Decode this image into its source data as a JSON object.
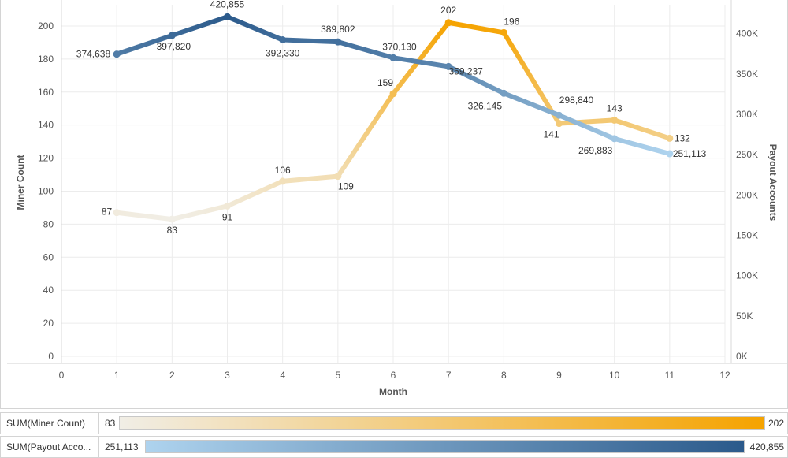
{
  "chart_data": {
    "type": "line",
    "xlabel": "Month",
    "ylabel_left": "Miner Count",
    "ylabel_right": "Payout Accounts",
    "xlim": [
      0,
      12
    ],
    "x_ticks": [
      "0",
      "1",
      "2",
      "3",
      "4",
      "5",
      "6",
      "7",
      "8",
      "9",
      "10",
      "11",
      "12"
    ],
    "ylim_left": [
      0,
      210
    ],
    "y_ticks_left": [
      "0",
      "20",
      "40",
      "60",
      "80",
      "100",
      "120",
      "140",
      "160",
      "180",
      "200"
    ],
    "ylim_right": [
      0,
      430000
    ],
    "y_ticks_right": [
      "0K",
      "50K",
      "100K",
      "150K",
      "200K",
      "250K",
      "300K",
      "350K",
      "400K"
    ],
    "grid": true,
    "x": [
      1,
      2,
      3,
      4,
      5,
      6,
      7,
      8,
      9,
      10,
      11
    ],
    "series": [
      {
        "name": "SUM(Miner Count)",
        "axis": "left",
        "values": [
          87,
          83,
          91,
          106,
          109,
          159,
          202,
          196,
          141,
          143,
          132
        ],
        "labels": [
          "87",
          "83",
          "91",
          "106",
          "109",
          "159",
          "202",
          "196",
          "141",
          "143",
          "132"
        ],
        "color_min": "#f1eee6",
        "color_max": "#f5a300"
      },
      {
        "name": "SUM(Payout Accounts)",
        "axis": "right",
        "values": [
          374638,
          397820,
          420855,
          392330,
          389802,
          370130,
          359237,
          326145,
          298840,
          269883,
          251113
        ],
        "labels": [
          "374,638",
          "397,820",
          "420,855",
          "392,330",
          "389,802",
          "370,130",
          "359,237",
          "326,145",
          "298,840",
          "269,883",
          "251,113"
        ],
        "color_min": "#aed3ee",
        "color_max": "#2b5a8b"
      }
    ]
  },
  "legend": {
    "miner": {
      "title": "SUM(Miner Count)",
      "min": "83",
      "max": "202"
    },
    "payout": {
      "title": "SUM(Payout Acco...",
      "min": "251,113",
      "max": "420,855"
    }
  },
  "colors": {
    "gridline": "#ececec",
    "axis_text": "#555555",
    "miner_low": "#f1eee6",
    "miner_high": "#f5a300",
    "payout_low": "#aed3ee",
    "payout_high": "#2b5a8b"
  }
}
